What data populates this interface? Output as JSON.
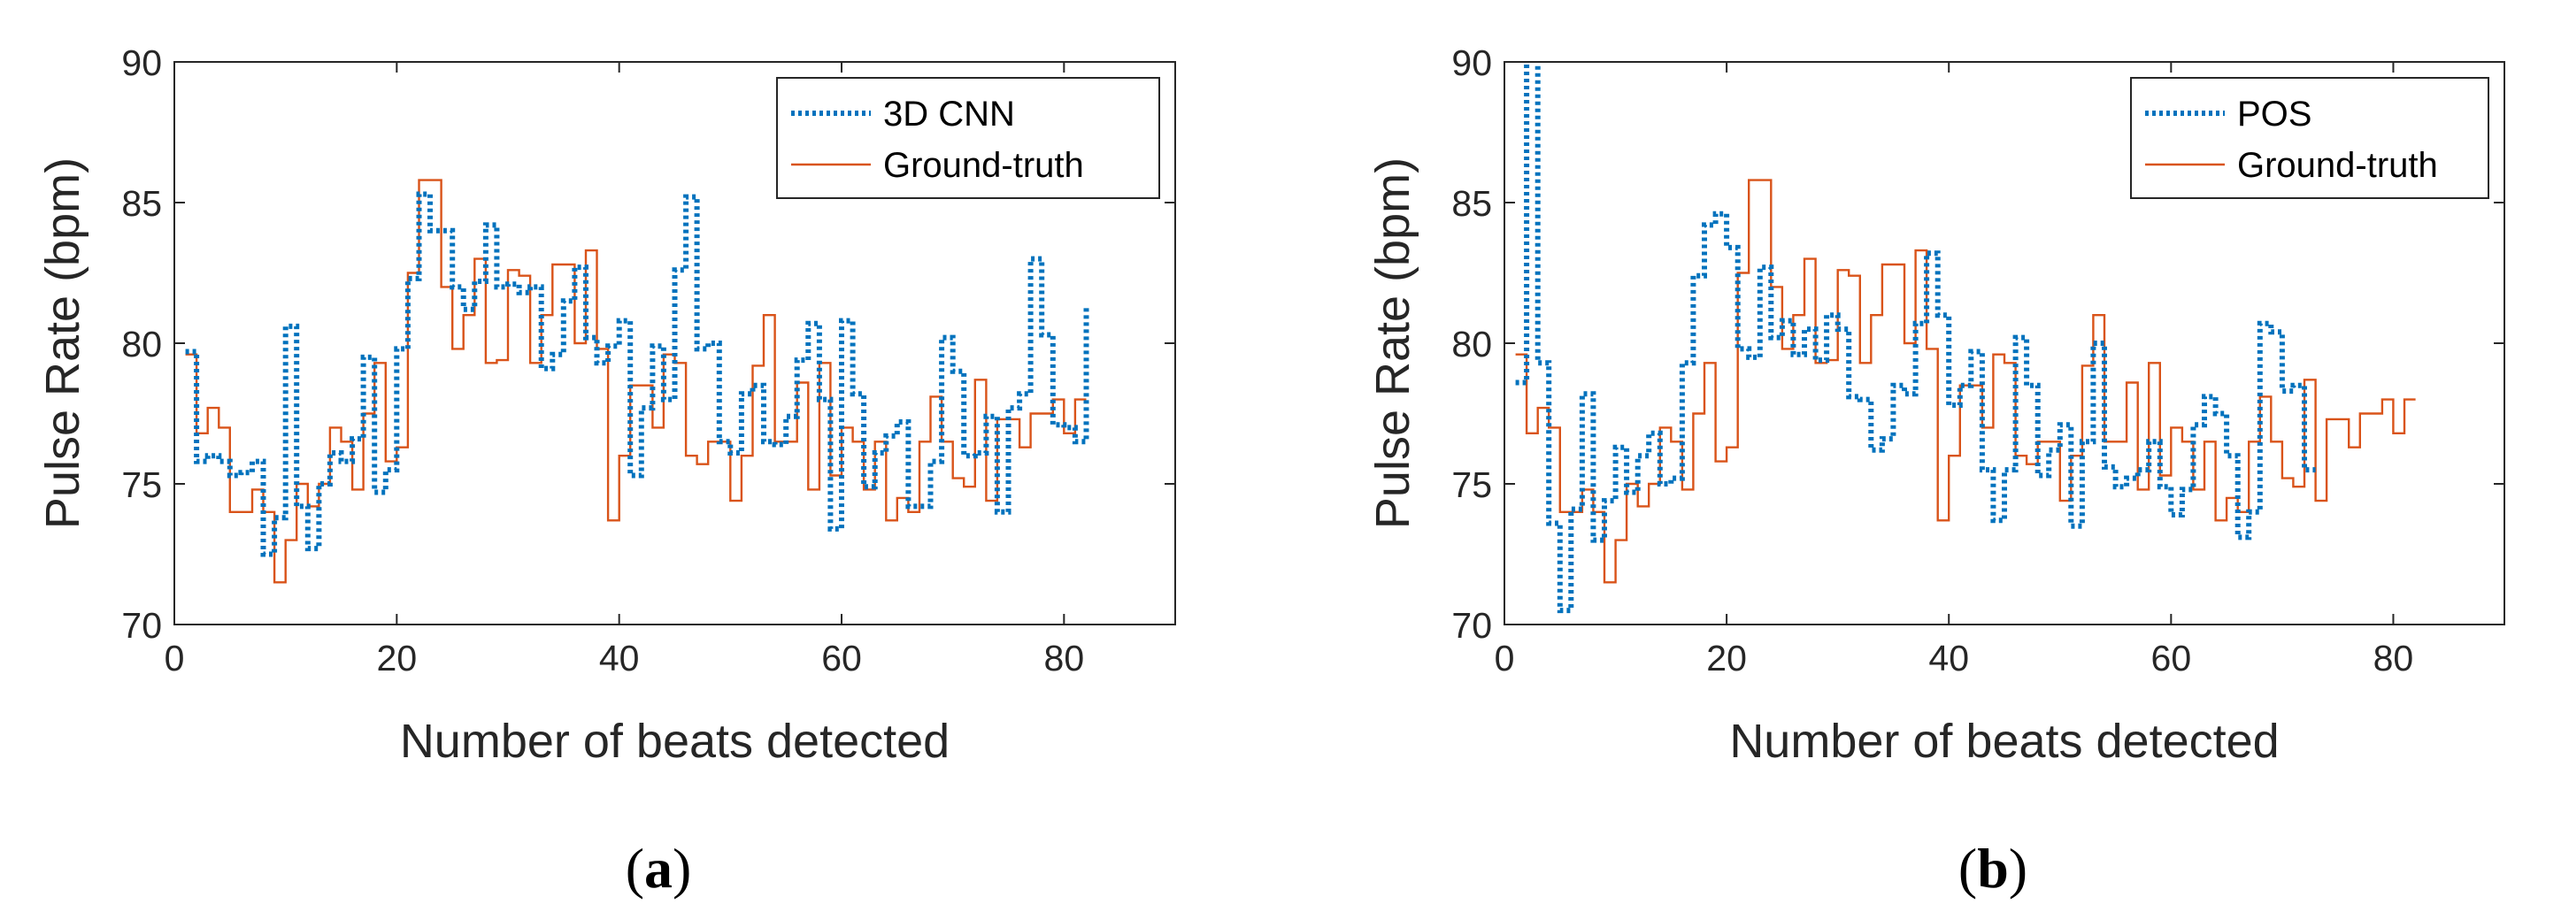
{
  "colors": {
    "series_a": "#0072BD",
    "series_b": "#D95319",
    "axis": "#262626"
  },
  "chart_data": [
    {
      "type": "line",
      "panel_label": "(a)",
      "panel_letter": "a",
      "xlabel": "Number of beats detected",
      "ylabel": "Pulse Rate (bpm)",
      "xlim": [
        0,
        90
      ],
      "ylim": [
        70,
        90
      ],
      "xticks": [
        "0",
        "20",
        "40",
        "60",
        "80"
      ],
      "yticks": [
        "70",
        "75",
        "80",
        "85",
        "90"
      ],
      "legend_position": "top-right",
      "series": [
        {
          "name": "3D CNN",
          "style": "dotted",
          "color": "#0072BD",
          "values": [
            79.7,
            75.8,
            76.0,
            75.8,
            75.3,
            75.4,
            75.8,
            72.5,
            73.8,
            80.6,
            74.2,
            72.7,
            75.0,
            76.1,
            75.8,
            76.6,
            79.5,
            74.7,
            75.5,
            79.8,
            82.3,
            85.3,
            84.0,
            84.0,
            82.0,
            81.2,
            82.2,
            84.2,
            82.0,
            82.1,
            81.8,
            82.0,
            79.1,
            79.6,
            81.5,
            82.7,
            80.2,
            79.3,
            79.9,
            80.8,
            75.3,
            77.7,
            79.9,
            78.0,
            82.6,
            85.2,
            79.8,
            80.0,
            76.5,
            76.1,
            78.2,
            78.5,
            76.5,
            76.4,
            77.4,
            79.4,
            80.7,
            78.0,
            73.4,
            80.8,
            78.2,
            74.9,
            76.1,
            76.7,
            77.2,
            74.2,
            74.2,
            75.8,
            80.2,
            79.0,
            76.0,
            76.1,
            77.4,
            74.0,
            77.7,
            78.2,
            83.0,
            80.3,
            77.1,
            77.0,
            76.5,
            81.3
          ]
        },
        {
          "name": "Ground-truth",
          "style": "solid",
          "color": "#D95319",
          "values": [
            79.6,
            76.8,
            77.7,
            77.0,
            74.0,
            74.0,
            74.8,
            74.0,
            71.5,
            73.0,
            75.0,
            74.2,
            75.0,
            77.0,
            76.5,
            74.8,
            77.5,
            79.3,
            75.8,
            76.3,
            82.5,
            85.8,
            85.8,
            82.0,
            79.8,
            81.0,
            83.0,
            79.3,
            79.4,
            82.6,
            82.4,
            79.3,
            81.0,
            82.8,
            82.8,
            80.0,
            83.3,
            79.8,
            73.7,
            76.0,
            78.5,
            78.5,
            77.0,
            79.6,
            79.3,
            76.0,
            75.7,
            76.5,
            76.5,
            74.4,
            76.0,
            79.2,
            81.0,
            76.5,
            76.5,
            78.6,
            74.8,
            79.3,
            75.3,
            77.0,
            76.5,
            74.8,
            76.5,
            73.7,
            74.5,
            74.0,
            76.5,
            78.1,
            76.5,
            75.2,
            74.9,
            78.7,
            74.4,
            77.3,
            77.3,
            76.3,
            77.5,
            77.5,
            78.0,
            76.8,
            78.0,
            78.0
          ]
        }
      ]
    },
    {
      "type": "line",
      "panel_label": "(b)",
      "panel_letter": "b",
      "xlabel": "Number of beats detected",
      "ylabel": "Pulse Rate (bpm)",
      "xlim": [
        0,
        90
      ],
      "ylim": [
        70,
        90
      ],
      "xticks": [
        "0",
        "20",
        "40",
        "60",
        "80"
      ],
      "yticks": [
        "70",
        "75",
        "80",
        "85",
        "90"
      ],
      "legend_position": "top-right",
      "series": [
        {
          "name": "POS",
          "style": "dotted",
          "color": "#0072BD",
          "values": [
            78.6,
            91.0,
            79.3,
            73.6,
            70.5,
            74.1,
            78.2,
            73.0,
            74.4,
            76.3,
            74.7,
            76.0,
            76.8,
            75.0,
            75.2,
            79.3,
            82.4,
            84.2,
            84.6,
            83.4,
            79.8,
            79.5,
            82.7,
            80.2,
            80.8,
            79.6,
            80.5,
            79.4,
            81.0,
            80.5,
            78.1,
            78.0,
            76.2,
            76.6,
            78.5,
            78.2,
            80.7,
            83.2,
            81.0,
            77.8,
            78.5,
            79.7,
            75.5,
            73.7,
            75.5,
            80.2,
            78.5,
            75.3,
            76.2,
            77.1,
            73.5,
            76.5,
            80.0,
            75.6,
            74.9,
            75.2,
            75.5,
            76.5,
            74.9,
            73.9,
            74.8,
            77.1,
            78.1,
            77.5,
            76.0,
            73.1,
            74.0,
            80.7,
            80.4,
            78.3,
            78.5,
            75.5,
            75.5
          ]
        },
        {
          "name": "Ground-truth",
          "style": "solid",
          "color": "#D95319",
          "values": [
            79.6,
            76.8,
            77.7,
            77.0,
            74.0,
            74.0,
            74.8,
            74.0,
            71.5,
            73.0,
            75.0,
            74.2,
            75.0,
            77.0,
            76.5,
            74.8,
            77.5,
            79.3,
            75.8,
            76.3,
            82.5,
            85.8,
            85.8,
            82.0,
            79.8,
            81.0,
            83.0,
            79.3,
            79.4,
            82.6,
            82.4,
            79.3,
            81.0,
            82.8,
            82.8,
            80.0,
            83.3,
            79.8,
            73.7,
            76.0,
            78.5,
            78.5,
            77.0,
            79.6,
            79.3,
            76.0,
            75.7,
            76.5,
            76.5,
            74.4,
            76.0,
            79.2,
            81.0,
            76.5,
            76.5,
            78.6,
            74.8,
            79.3,
            75.3,
            77.0,
            76.5,
            74.8,
            76.5,
            73.7,
            74.5,
            74.0,
            76.5,
            78.1,
            76.5,
            75.2,
            74.9,
            78.7,
            74.4,
            77.3,
            77.3,
            76.3,
            77.5,
            77.5,
            78.0,
            76.8,
            78.0,
            78.0
          ]
        }
      ]
    }
  ]
}
